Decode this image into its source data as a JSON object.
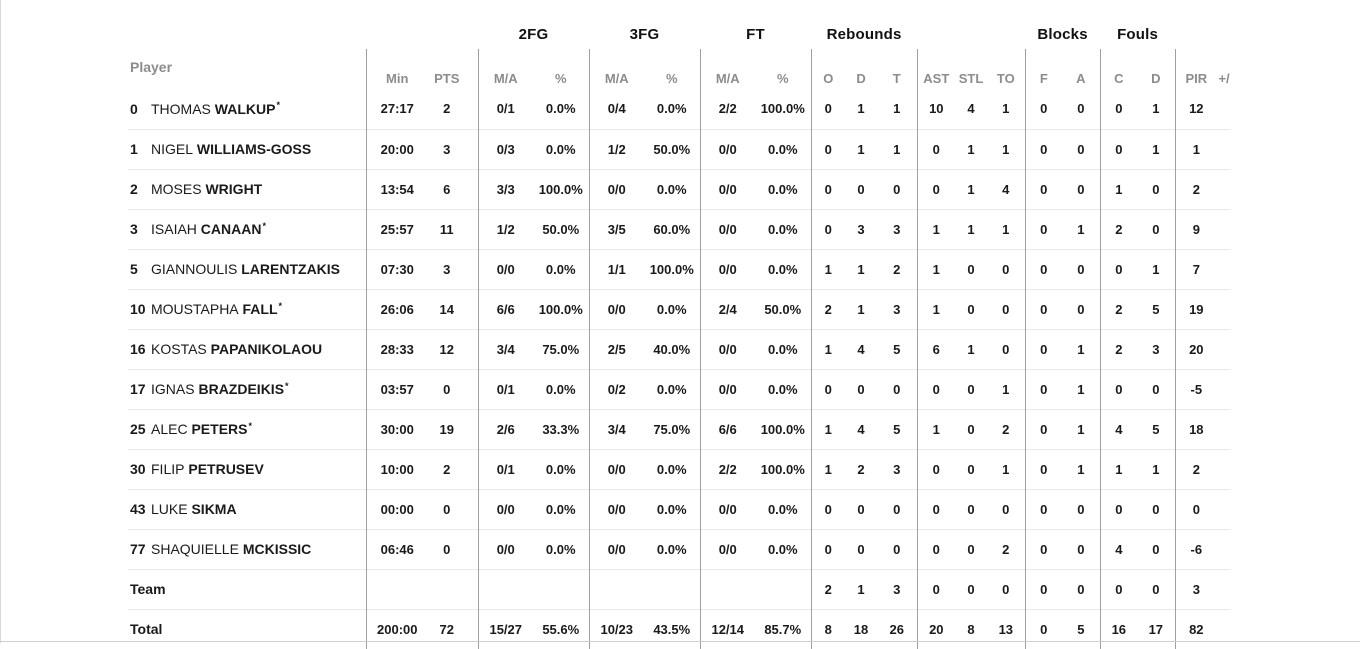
{
  "colors": {
    "background": "#ffffff",
    "data_text": "#1a1a1a",
    "header_text": "#8c8c8c",
    "column_divider": "#a0a0a0",
    "row_separator": "#e9e9e9"
  },
  "table": {
    "starter_mark": "*",
    "group_headers": {
      "fg2": "2FG",
      "fg3": "3FG",
      "ft": "FT",
      "rebounds": "Rebounds",
      "blocks": "Blocks",
      "fouls": "Fouls"
    },
    "columns": {
      "player": "Player",
      "min": "Min",
      "pts": "PTS",
      "ma": "M/A",
      "pct": "%",
      "reb_o": "O",
      "reb_d": "D",
      "reb_t": "T",
      "ast": "AST",
      "stl": "STL",
      "to": "TO",
      "blk_f": "F",
      "blk_a": "A",
      "foul_c": "C",
      "foul_d": "D",
      "pir": "PIR",
      "plus_minus": "+/"
    },
    "rows": [
      {
        "number": "0",
        "first_name": "THOMAS",
        "last_name": "WALKUP",
        "starter": true,
        "min": "27:17",
        "pts": "2",
        "fg2_ma": "0/1",
        "fg2_pct": "0.0%",
        "fg3_ma": "0/4",
        "fg3_pct": "0.0%",
        "ft_ma": "2/2",
        "ft_pct": "100.0%",
        "reb_o": "0",
        "reb_d": "1",
        "reb_t": "1",
        "ast": "10",
        "stl": "4",
        "to": "1",
        "blk_f": "0",
        "blk_a": "0",
        "foul_c": "0",
        "foul_d": "1",
        "pir": "12",
        "plus_minus": ""
      },
      {
        "number": "1",
        "first_name": "NIGEL",
        "last_name": "WILLIAMS-GOSS",
        "starter": false,
        "min": "20:00",
        "pts": "3",
        "fg2_ma": "0/3",
        "fg2_pct": "0.0%",
        "fg3_ma": "1/2",
        "fg3_pct": "50.0%",
        "ft_ma": "0/0",
        "ft_pct": "0.0%",
        "reb_o": "0",
        "reb_d": "1",
        "reb_t": "1",
        "ast": "0",
        "stl": "1",
        "to": "1",
        "blk_f": "0",
        "blk_a": "0",
        "foul_c": "0",
        "foul_d": "1",
        "pir": "1",
        "plus_minus": ""
      },
      {
        "number": "2",
        "first_name": "MOSES",
        "last_name": "WRIGHT",
        "starter": false,
        "min": "13:54",
        "pts": "6",
        "fg2_ma": "3/3",
        "fg2_pct": "100.0%",
        "fg3_ma": "0/0",
        "fg3_pct": "0.0%",
        "ft_ma": "0/0",
        "ft_pct": "0.0%",
        "reb_o": "0",
        "reb_d": "0",
        "reb_t": "0",
        "ast": "0",
        "stl": "1",
        "to": "4",
        "blk_f": "0",
        "blk_a": "0",
        "foul_c": "1",
        "foul_d": "0",
        "pir": "2",
        "plus_minus": ""
      },
      {
        "number": "3",
        "first_name": "ISAIAH",
        "last_name": "CANAAN",
        "starter": true,
        "min": "25:57",
        "pts": "11",
        "fg2_ma": "1/2",
        "fg2_pct": "50.0%",
        "fg3_ma": "3/5",
        "fg3_pct": "60.0%",
        "ft_ma": "0/0",
        "ft_pct": "0.0%",
        "reb_o": "0",
        "reb_d": "3",
        "reb_t": "3",
        "ast": "1",
        "stl": "1",
        "to": "1",
        "blk_f": "0",
        "blk_a": "1",
        "foul_c": "2",
        "foul_d": "0",
        "pir": "9",
        "plus_minus": ""
      },
      {
        "number": "5",
        "first_name": "GIANNOULIS",
        "last_name": "LARENTZAKIS",
        "starter": false,
        "min": "07:30",
        "pts": "3",
        "fg2_ma": "0/0",
        "fg2_pct": "0.0%",
        "fg3_ma": "1/1",
        "fg3_pct": "100.0%",
        "ft_ma": "0/0",
        "ft_pct": "0.0%",
        "reb_o": "1",
        "reb_d": "1",
        "reb_t": "2",
        "ast": "1",
        "stl": "0",
        "to": "0",
        "blk_f": "0",
        "blk_a": "0",
        "foul_c": "0",
        "foul_d": "1",
        "pir": "7",
        "plus_minus": ""
      },
      {
        "number": "10",
        "first_name": "MOUSTAPHA",
        "last_name": "FALL",
        "starter": true,
        "min": "26:06",
        "pts": "14",
        "fg2_ma": "6/6",
        "fg2_pct": "100.0%",
        "fg3_ma": "0/0",
        "fg3_pct": "0.0%",
        "ft_ma": "2/4",
        "ft_pct": "50.0%",
        "reb_o": "2",
        "reb_d": "1",
        "reb_t": "3",
        "ast": "1",
        "stl": "0",
        "to": "0",
        "blk_f": "0",
        "blk_a": "0",
        "foul_c": "2",
        "foul_d": "5",
        "pir": "19",
        "plus_minus": ""
      },
      {
        "number": "16",
        "first_name": "KOSTAS",
        "last_name": "PAPANIKOLAOU",
        "starter": false,
        "min": "28:33",
        "pts": "12",
        "fg2_ma": "3/4",
        "fg2_pct": "75.0%",
        "fg3_ma": "2/5",
        "fg3_pct": "40.0%",
        "ft_ma": "0/0",
        "ft_pct": "0.0%",
        "reb_o": "1",
        "reb_d": "4",
        "reb_t": "5",
        "ast": "6",
        "stl": "1",
        "to": "0",
        "blk_f": "0",
        "blk_a": "1",
        "foul_c": "2",
        "foul_d": "3",
        "pir": "20",
        "plus_minus": ""
      },
      {
        "number": "17",
        "first_name": "IGNAS",
        "last_name": "BRAZDEIKIS",
        "starter": true,
        "min": "03:57",
        "pts": "0",
        "fg2_ma": "0/1",
        "fg2_pct": "0.0%",
        "fg3_ma": "0/2",
        "fg3_pct": "0.0%",
        "ft_ma": "0/0",
        "ft_pct": "0.0%",
        "reb_o": "0",
        "reb_d": "0",
        "reb_t": "0",
        "ast": "0",
        "stl": "0",
        "to": "1",
        "blk_f": "0",
        "blk_a": "1",
        "foul_c": "0",
        "foul_d": "0",
        "pir": "-5",
        "plus_minus": ""
      },
      {
        "number": "25",
        "first_name": "ALEC",
        "last_name": "PETERS",
        "starter": true,
        "min": "30:00",
        "pts": "19",
        "fg2_ma": "2/6",
        "fg2_pct": "33.3%",
        "fg3_ma": "3/4",
        "fg3_pct": "75.0%",
        "ft_ma": "6/6",
        "ft_pct": "100.0%",
        "reb_o": "1",
        "reb_d": "4",
        "reb_t": "5",
        "ast": "1",
        "stl": "0",
        "to": "2",
        "blk_f": "0",
        "blk_a": "1",
        "foul_c": "4",
        "foul_d": "5",
        "pir": "18",
        "plus_minus": ""
      },
      {
        "number": "30",
        "first_name": "FILIP",
        "last_name": "PETRUSEV",
        "starter": false,
        "min": "10:00",
        "pts": "2",
        "fg2_ma": "0/1",
        "fg2_pct": "0.0%",
        "fg3_ma": "0/0",
        "fg3_pct": "0.0%",
        "ft_ma": "2/2",
        "ft_pct": "100.0%",
        "reb_o": "1",
        "reb_d": "2",
        "reb_t": "3",
        "ast": "0",
        "stl": "0",
        "to": "1",
        "blk_f": "0",
        "blk_a": "1",
        "foul_c": "1",
        "foul_d": "1",
        "pir": "2",
        "plus_minus": ""
      },
      {
        "number": "43",
        "first_name": "LUKE",
        "last_name": "SIKMA",
        "starter": false,
        "min": "00:00",
        "pts": "0",
        "fg2_ma": "0/0",
        "fg2_pct": "0.0%",
        "fg3_ma": "0/0",
        "fg3_pct": "0.0%",
        "ft_ma": "0/0",
        "ft_pct": "0.0%",
        "reb_o": "0",
        "reb_d": "0",
        "reb_t": "0",
        "ast": "0",
        "stl": "0",
        "to": "0",
        "blk_f": "0",
        "blk_a": "0",
        "foul_c": "0",
        "foul_d": "0",
        "pir": "0",
        "plus_minus": ""
      },
      {
        "number": "77",
        "first_name": "SHAQUIELLE",
        "last_name": "MCKISSIC",
        "starter": false,
        "min": "06:46",
        "pts": "0",
        "fg2_ma": "0/0",
        "fg2_pct": "0.0%",
        "fg3_ma": "0/0",
        "fg3_pct": "0.0%",
        "ft_ma": "0/0",
        "ft_pct": "0.0%",
        "reb_o": "0",
        "reb_d": "0",
        "reb_t": "0",
        "ast": "0",
        "stl": "0",
        "to": "2",
        "blk_f": "0",
        "blk_a": "0",
        "foul_c": "4",
        "foul_d": "0",
        "pir": "-6",
        "plus_minus": ""
      }
    ],
    "team_row": {
      "label": "Team",
      "min": "",
      "pts": "",
      "fg2_ma": "",
      "fg2_pct": "",
      "fg3_ma": "",
      "fg3_pct": "",
      "ft_ma": "",
      "ft_pct": "",
      "reb_o": "2",
      "reb_d": "1",
      "reb_t": "3",
      "ast": "0",
      "stl": "0",
      "to": "0",
      "blk_f": "0",
      "blk_a": "0",
      "foul_c": "0",
      "foul_d": "0",
      "pir": "3",
      "plus_minus": ""
    },
    "total_row": {
      "label": "Total",
      "min": "200:00",
      "pts": "72",
      "fg2_ma": "15/27",
      "fg2_pct": "55.6%",
      "fg3_ma": "10/23",
      "fg3_pct": "43.5%",
      "ft_ma": "12/14",
      "ft_pct": "85.7%",
      "reb_o": "8",
      "reb_d": "18",
      "reb_t": "26",
      "ast": "20",
      "stl": "8",
      "to": "13",
      "blk_f": "0",
      "blk_a": "5",
      "foul_c": "16",
      "foul_d": "17",
      "pir": "82",
      "plus_minus": ""
    }
  }
}
